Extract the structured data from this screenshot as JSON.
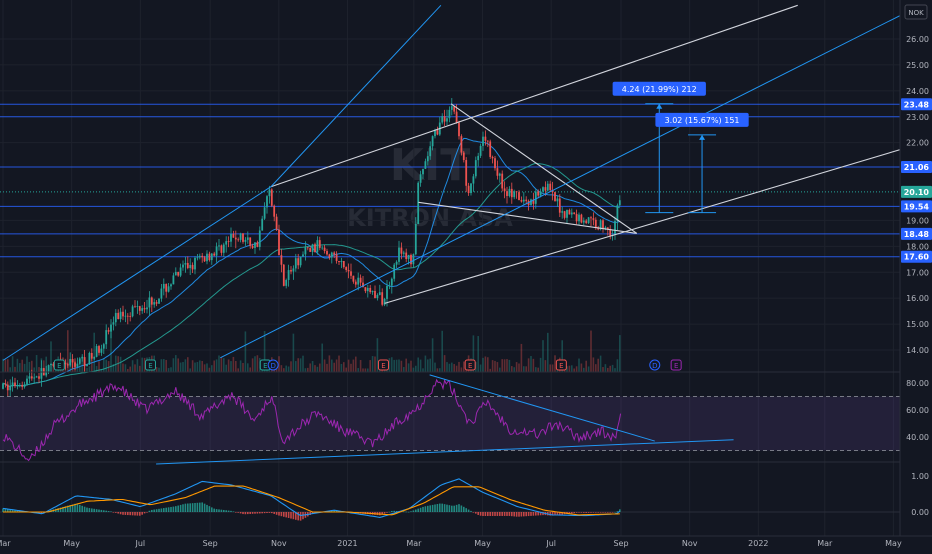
{
  "chart_data": {
    "type": "candlestick",
    "watermark": {
      "line1": "KIT",
      "line2": "KITRON ASA"
    },
    "currency": "NOK",
    "price_axis": {
      "ticks": [
        {
          "label": "26.00",
          "value": 26.0
        },
        {
          "label": "25.00",
          "value": 25.0
        },
        {
          "label": "24.00",
          "value": 24.0
        },
        {
          "label": "23.00",
          "value": 23.0
        },
        {
          "label": "22.00",
          "value": 22.0
        },
        {
          "label": "19.00",
          "value": 19.0
        },
        {
          "label": "18.00",
          "value": 18.0
        },
        {
          "label": "17.00",
          "value": 17.0
        },
        {
          "label": "16.00",
          "value": 16.0
        },
        {
          "label": "15.00",
          "value": 15.0
        },
        {
          "label": "14.00",
          "value": 14.0
        }
      ],
      "range": [
        13.6,
        27.3
      ]
    },
    "price_tags": [
      {
        "label": "23.48",
        "value": 23.48,
        "color": "#2962ff"
      },
      {
        "label": "21.06",
        "value": 21.06,
        "color": "#2962ff"
      },
      {
        "label": "20.10",
        "value": 20.1,
        "color": "#26a69a"
      },
      {
        "label": "19.54",
        "value": 19.54,
        "color": "#2962ff"
      },
      {
        "label": "18.48",
        "value": 18.48,
        "color": "#2962ff"
      },
      {
        "label": "17.60",
        "value": 17.6,
        "color": "#2962ff"
      }
    ],
    "horizontal_levels": [
      23.48,
      23.0,
      21.06,
      19.54,
      18.48,
      17.6
    ],
    "current_price": 20.1,
    "measurements": [
      {
        "label": "4.24 (21.99%) 212",
        "from": 19.3,
        "to": 23.5,
        "date": "2021-10-05"
      },
      {
        "label": "3.02 (15.67%) 151",
        "from": 19.3,
        "to": 22.3,
        "date": "2021-11-12"
      }
    ],
    "time_axis": {
      "ticks": [
        {
          "label": "Mar",
          "date": "2020-03-01"
        },
        {
          "label": "May",
          "date": "2020-05-01"
        },
        {
          "label": "Jul",
          "date": "2020-07-01"
        },
        {
          "label": "Sep",
          "date": "2020-09-01"
        },
        {
          "label": "Nov",
          "date": "2020-11-01"
        },
        {
          "label": "2021",
          "date": "2021-01-01"
        },
        {
          "label": "Mar",
          "date": "2021-03-01"
        },
        {
          "label": "May",
          "date": "2021-05-01"
        },
        {
          "label": "Jul",
          "date": "2021-07-01"
        },
        {
          "label": "Sep",
          "date": "2021-09-01"
        },
        {
          "label": "Nov",
          "date": "2021-11-01"
        },
        {
          "label": "2022",
          "date": "2022-01-01"
        },
        {
          "label": "Mar",
          "date": "2022-03-01"
        },
        {
          "label": "May",
          "date": "2022-05-01"
        }
      ]
    },
    "price_anchors": [
      {
        "date": "2020-03-01",
        "value": 12.5
      },
      {
        "date": "2020-04-15",
        "value": 13.3
      },
      {
        "date": "2020-05-20",
        "value": 13.7
      },
      {
        "date": "2020-06-10",
        "value": 15.3
      },
      {
        "date": "2020-07-15",
        "value": 16.0
      },
      {
        "date": "2020-08-10",
        "value": 17.2
      },
      {
        "date": "2020-09-05",
        "value": 17.8
      },
      {
        "date": "2020-09-25",
        "value": 18.4
      },
      {
        "date": "2020-10-12",
        "value": 18.0
      },
      {
        "date": "2020-10-24",
        "value": 20.3
      },
      {
        "date": "2020-11-05",
        "value": 16.7
      },
      {
        "date": "2020-11-25",
        "value": 17.8
      },
      {
        "date": "2020-12-10",
        "value": 18.1
      },
      {
        "date": "2020-12-28",
        "value": 17.2
      },
      {
        "date": "2021-01-20",
        "value": 16.3
      },
      {
        "date": "2021-02-02",
        "value": 15.9
      },
      {
        "date": "2021-02-15",
        "value": 17.8
      },
      {
        "date": "2021-02-28",
        "value": 17.4
      },
      {
        "date": "2021-03-05",
        "value": 20.3
      },
      {
        "date": "2021-03-20",
        "value": 22.4
      },
      {
        "date": "2021-04-05",
        "value": 23.5
      },
      {
        "date": "2021-04-18",
        "value": 20.2
      },
      {
        "date": "2021-05-03",
        "value": 22.2
      },
      {
        "date": "2021-05-20",
        "value": 20.2
      },
      {
        "date": "2021-06-10",
        "value": 19.6
      },
      {
        "date": "2021-06-25",
        "value": 20.4
      },
      {
        "date": "2021-07-10",
        "value": 19.4
      },
      {
        "date": "2021-07-25",
        "value": 19.1
      },
      {
        "date": "2021-08-10",
        "value": 18.9
      },
      {
        "date": "2021-08-25",
        "value": 18.6
      },
      {
        "date": "2021-09-01",
        "value": 20.1
      }
    ],
    "event_markers": [
      {
        "label": "E",
        "date": "2020-04-20",
        "color": "#26a69a"
      },
      {
        "label": "E",
        "date": "2020-07-10",
        "color": "#26a69a"
      },
      {
        "label": "E",
        "date": "2020-10-20",
        "color": "#26a69a"
      },
      {
        "label": "D",
        "date": "2020-10-27",
        "color": "#2962ff"
      },
      {
        "label": "E",
        "date": "2021-02-02",
        "color": "#ef5350"
      },
      {
        "label": "E",
        "date": "2021-04-20",
        "color": "#ef5350"
      },
      {
        "label": "E",
        "date": "2021-07-10",
        "color": "#ef5350"
      },
      {
        "label": "D",
        "date": "2021-10-01",
        "color": "#2962ff"
      },
      {
        "label": "E",
        "date": "2021-10-20",
        "color": "#9c27b0"
      }
    ],
    "rsi": {
      "ticks": [
        {
          "label": "80.00",
          "value": 80
        },
        {
          "label": "60.00",
          "value": 60
        },
        {
          "label": "40.00",
          "value": 40
        }
      ],
      "bands": [
        70,
        30
      ],
      "range": [
        20,
        88
      ],
      "anchors": [
        {
          "date": "2020-03-01",
          "value": 42
        },
        {
          "date": "2020-03-25",
          "value": 22
        },
        {
          "date": "2020-04-15",
          "value": 48
        },
        {
          "date": "2020-05-10",
          "value": 65
        },
        {
          "date": "2020-06-10",
          "value": 78
        },
        {
          "date": "2020-07-05",
          "value": 60
        },
        {
          "date": "2020-08-01",
          "value": 74
        },
        {
          "date": "2020-08-25",
          "value": 55
        },
        {
          "date": "2020-09-20",
          "value": 72
        },
        {
          "date": "2020-10-10",
          "value": 52
        },
        {
          "date": "2020-10-25",
          "value": 70
        },
        {
          "date": "2020-11-05",
          "value": 38
        },
        {
          "date": "2020-12-05",
          "value": 58
        },
        {
          "date": "2020-12-28",
          "value": 45
        },
        {
          "date": "2021-01-25",
          "value": 35
        },
        {
          "date": "2021-02-15",
          "value": 52
        },
        {
          "date": "2021-03-05",
          "value": 62
        },
        {
          "date": "2021-03-20",
          "value": 80
        },
        {
          "date": "2021-04-02",
          "value": 78
        },
        {
          "date": "2021-04-20",
          "value": 50
        },
        {
          "date": "2021-05-05",
          "value": 66
        },
        {
          "date": "2021-05-25",
          "value": 46
        },
        {
          "date": "2021-06-20",
          "value": 42
        },
        {
          "date": "2021-07-05",
          "value": 50
        },
        {
          "date": "2021-07-25",
          "value": 40
        },
        {
          "date": "2021-08-15",
          "value": 44
        },
        {
          "date": "2021-08-28",
          "value": 38
        },
        {
          "date": "2021-09-01",
          "value": 63
        }
      ]
    },
    "macd": {
      "ticks": [
        {
          "label": "1.00",
          "value": 1.0
        },
        {
          "label": "0.00",
          "value": 0.0
        }
      ],
      "range": [
        -0.4,
        1.5
      ],
      "macd_anchors": [
        {
          "date": "2020-03-01",
          "value": 0.1
        },
        {
          "date": "2020-04-05",
          "value": -0.05
        },
        {
          "date": "2020-05-05",
          "value": 0.45
        },
        {
          "date": "2020-06-05",
          "value": 0.35
        },
        {
          "date": "2020-07-01",
          "value": 0.15
        },
        {
          "date": "2020-08-01",
          "value": 0.5
        },
        {
          "date": "2020-08-25",
          "value": 0.85
        },
        {
          "date": "2020-09-20",
          "value": 0.75
        },
        {
          "date": "2020-10-25",
          "value": 0.45
        },
        {
          "date": "2020-11-20",
          "value": -0.1
        },
        {
          "date": "2020-12-20",
          "value": 0.05
        },
        {
          "date": "2021-01-30",
          "value": -0.15
        },
        {
          "date": "2021-02-25",
          "value": 0.1
        },
        {
          "date": "2021-03-25",
          "value": 0.75
        },
        {
          "date": "2021-04-10",
          "value": 0.92
        },
        {
          "date": "2021-05-01",
          "value": 0.55
        },
        {
          "date": "2021-06-01",
          "value": 0.15
        },
        {
          "date": "2021-07-01",
          "value": -0.08
        },
        {
          "date": "2021-08-01",
          "value": -0.1
        },
        {
          "date": "2021-08-28",
          "value": -0.05
        },
        {
          "date": "2021-09-01",
          "value": 0.05
        }
      ],
      "signal_anchors": [
        {
          "date": "2020-03-01",
          "value": 0.0
        },
        {
          "date": "2020-04-10",
          "value": 0.0
        },
        {
          "date": "2020-05-15",
          "value": 0.3
        },
        {
          "date": "2020-06-15",
          "value": 0.35
        },
        {
          "date": "2020-07-10",
          "value": 0.2
        },
        {
          "date": "2020-08-10",
          "value": 0.4
        },
        {
          "date": "2020-09-05",
          "value": 0.72
        },
        {
          "date": "2020-10-01",
          "value": 0.72
        },
        {
          "date": "2020-11-01",
          "value": 0.4
        },
        {
          "date": "2020-12-01",
          "value": 0.0
        },
        {
          "date": "2021-01-01",
          "value": 0.0
        },
        {
          "date": "2021-02-10",
          "value": -0.08
        },
        {
          "date": "2021-03-10",
          "value": 0.25
        },
        {
          "date": "2021-04-05",
          "value": 0.7
        },
        {
          "date": "2021-04-28",
          "value": 0.7
        },
        {
          "date": "2021-05-25",
          "value": 0.35
        },
        {
          "date": "2021-06-25",
          "value": 0.05
        },
        {
          "date": "2021-07-25",
          "value": -0.08
        },
        {
          "date": "2021-09-01",
          "value": -0.05
        }
      ]
    },
    "colors": {
      "background": "#131722",
      "grid": "#1e222d",
      "up": "#26a69a",
      "down": "#ef5350",
      "level": "#2962ff",
      "trendline": "#d1d4dc",
      "ma": "#2196f3",
      "ma_slow": "#26a69a",
      "rsi": "#9c27b0",
      "macd": "#2196f3",
      "signal": "#ff9800"
    }
  }
}
